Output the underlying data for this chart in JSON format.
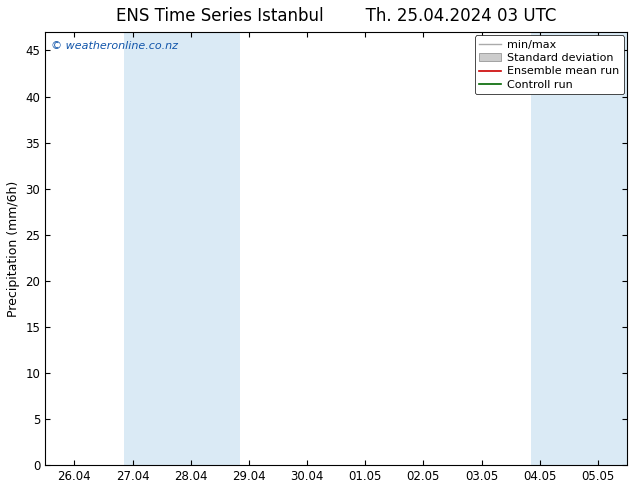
{
  "title_left": "ENS Time Series Istanbul",
  "title_right": "Th. 25.04.2024 03 UTC",
  "ylabel": "Precipitation (mm/6h)",
  "ylim": [
    0,
    47
  ],
  "yticks": [
    0,
    5,
    10,
    15,
    20,
    25,
    30,
    35,
    40,
    45
  ],
  "x_labels": [
    "26.04",
    "27.04",
    "28.04",
    "29.04",
    "30.04",
    "01.05",
    "02.05",
    "03.05",
    "04.05",
    "05.05"
  ],
  "x_values": [
    0,
    1,
    2,
    3,
    4,
    5,
    6,
    7,
    8,
    9
  ],
  "xlim": [
    -0.5,
    9.5
  ],
  "shaded_bands": [
    {
      "xmin": 0.85,
      "xmax": 2.85,
      "color": "#daeaf5"
    },
    {
      "xmin": 7.85,
      "xmax": 9.5,
      "color": "#daeaf5"
    }
  ],
  "legend_entries": [
    {
      "label": "min/max",
      "color": "#aaaaaa",
      "lw": 1.0
    },
    {
      "label": "Standard deviation",
      "color": "#cccccc",
      "lw": 5
    },
    {
      "label": "Ensemble mean run",
      "color": "#cc0000",
      "lw": 1.2
    },
    {
      "label": "Controll run",
      "color": "#006600",
      "lw": 1.2
    }
  ],
  "watermark": "© weatheronline.co.nz",
  "watermark_color": "#1155aa",
  "background_color": "#ffffff",
  "plot_bg_color": "#ffffff",
  "title_fontsize": 12,
  "axis_label_fontsize": 9,
  "tick_fontsize": 8.5,
  "legend_fontsize": 8
}
